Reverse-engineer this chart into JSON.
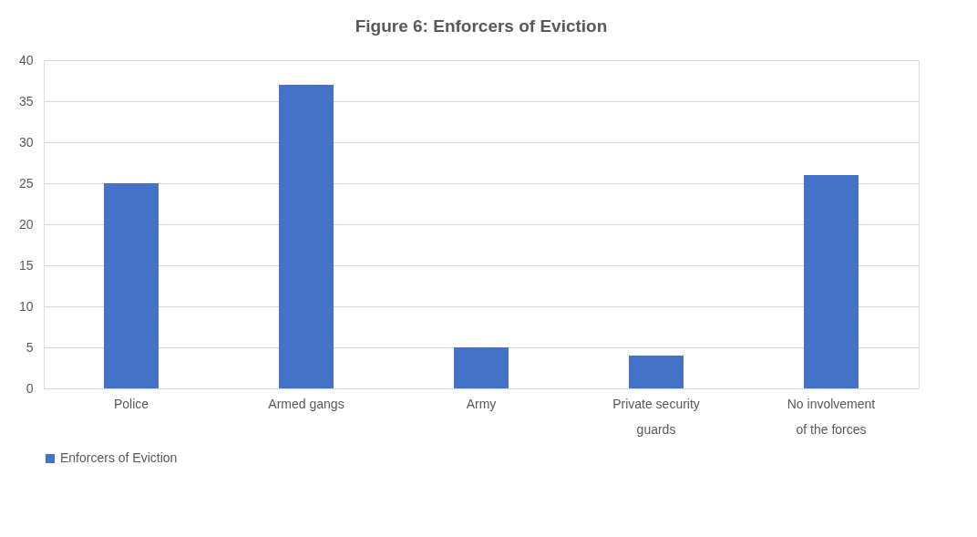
{
  "chart_data": {
    "type": "bar",
    "title": "Figure 6: Enforcers of Eviction",
    "categories": [
      "Police",
      "Armed gangs",
      "Army",
      "Private security guards",
      "No involvement of the forces"
    ],
    "series": [
      {
        "name": "Enforcers of Eviction",
        "color": "#4472c4",
        "values": [
          25,
          37,
          5,
          4,
          26
        ]
      }
    ],
    "ylim": [
      0,
      40
    ],
    "yticks": [
      0,
      5,
      10,
      15,
      20,
      25,
      30,
      35,
      40
    ],
    "grid": "y",
    "legend": "bottom"
  }
}
